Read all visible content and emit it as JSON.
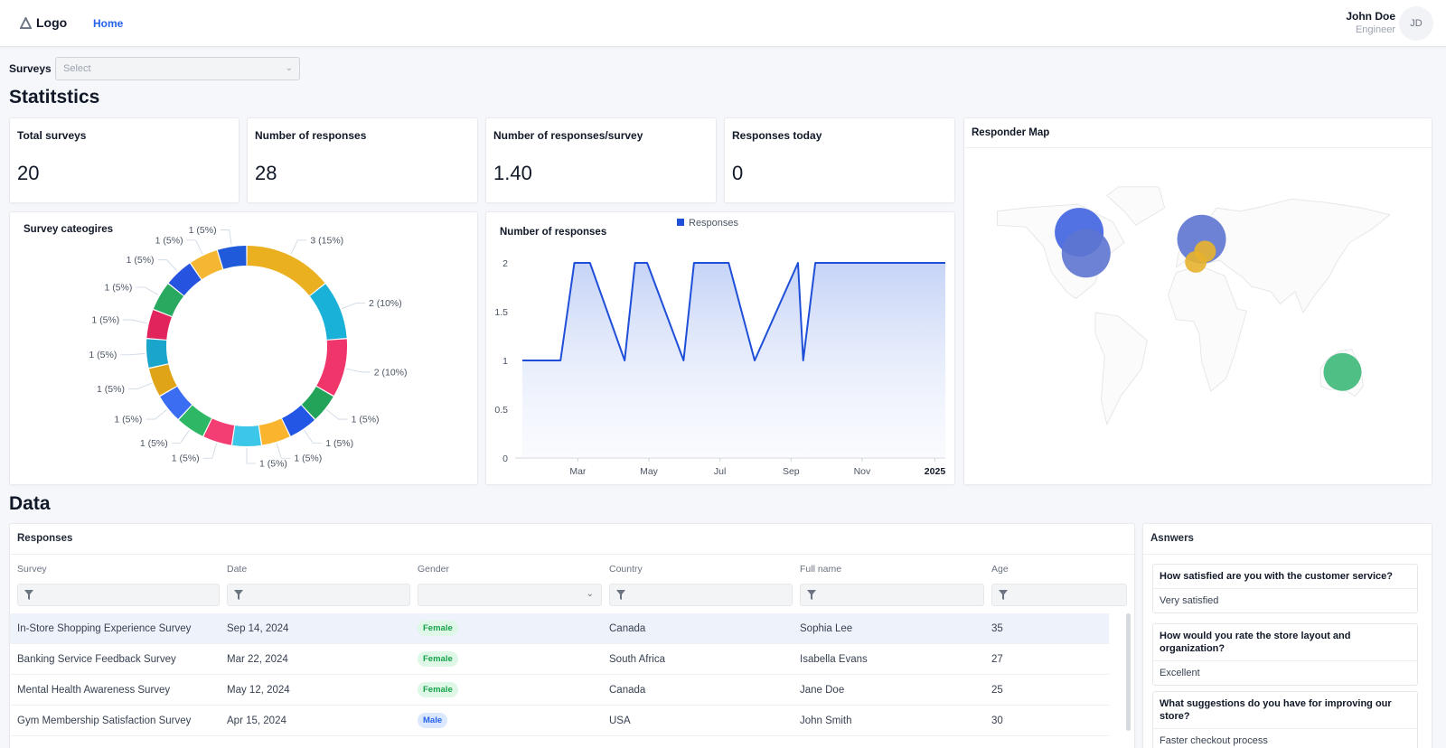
{
  "header": {
    "logo_text": "Logo",
    "nav": [
      {
        "label": "Home"
      }
    ],
    "user": {
      "name": "John Doe",
      "role": "Engineer",
      "initials": "JD"
    }
  },
  "filters": {
    "surveys_label": "Surveys",
    "select_placeholder": "Select"
  },
  "statistics": {
    "heading": "Statitstics",
    "cards": [
      {
        "title": "Total surveys",
        "value": "20"
      },
      {
        "title": "Number of responses",
        "value": "28"
      },
      {
        "title": "Number of responses/survey",
        "value": "1.40"
      },
      {
        "title": "Responses today",
        "value": "0"
      }
    ],
    "categories_title": "Survey cateogires",
    "responses_chart_title": "Number of responses",
    "map_title": "Responder Map"
  },
  "chart_data": [
    {
      "type": "pie",
      "title": "Survey cateogires",
      "values": [
        3,
        2,
        2,
        1,
        1,
        1,
        1,
        1,
        1,
        1,
        1,
        1,
        1,
        1,
        1,
        1,
        1
      ],
      "labels": [
        "3 (15%)",
        "2 (10%)",
        "2 (10%)",
        "1 (5%)",
        "1 (5%)",
        "1 (5%)",
        "1 (5%)",
        "1 (5%)",
        "1 (5%)",
        "1 (5%)",
        "1 (5%)",
        "1 (5%)",
        "1 (5%)",
        "1 (5%)",
        "1 (5%)",
        "1 (5%)",
        "1 (5%)"
      ],
      "colors": [
        "#ebb01f",
        "#1ab1d9",
        "#f0356b",
        "#23a35a",
        "#2456e6",
        "#fbb42e",
        "#3cc6e8",
        "#f23e72",
        "#2eb866",
        "#3b6df2",
        "#e0a418",
        "#1aa6cc",
        "#e2245c",
        "#29a85f",
        "#2653e0",
        "#f5b731",
        "#1e5ad9"
      ]
    },
    {
      "type": "area",
      "title": "Number of responses",
      "series_name": "Responses",
      "yticks": [
        "0",
        "0.5",
        "1",
        "1.5",
        "2"
      ],
      "xticks": [
        "Mar",
        "May",
        "Jul",
        "Sep",
        "Nov",
        "2025"
      ],
      "ylim": [
        0,
        2
      ],
      "xlim": [
        0,
        12.2
      ],
      "x": [
        0,
        1.1,
        1.5,
        1.95,
        2.95,
        3.25,
        3.6,
        4.65,
        4.95,
        5.95,
        6.7,
        7.95,
        8.1,
        8.45,
        8.55,
        12.2
      ],
      "y": [
        1,
        1,
        2,
        2,
        1,
        2,
        2,
        1,
        2,
        2,
        1,
        2,
        1,
        2,
        2,
        2
      ]
    }
  ],
  "map": {
    "bubbles": [
      {
        "lon": -94,
        "lat": 56,
        "r": 27,
        "color": "#3f62e0"
      },
      {
        "lon": -88,
        "lat": 44,
        "r": 27,
        "color": "#5d74cf"
      },
      {
        "lon": 12,
        "lat": 52,
        "r": 27,
        "color": "#5d74cf"
      },
      {
        "lon": 15,
        "lat": 45,
        "r": 12,
        "color": "#e7b22c"
      },
      {
        "lon": 7,
        "lat": 39,
        "r": 12,
        "color": "#e7b22c"
      },
      {
        "lon": 134,
        "lat": -24,
        "r": 21,
        "color": "#3cb878"
      }
    ]
  },
  "data_section": {
    "heading": "Data",
    "responses_title": "Responses",
    "columns": [
      "Survey",
      "Date",
      "Gender",
      "Country",
      "Full name",
      "Age"
    ],
    "rows": [
      {
        "survey": "In-Store Shopping Experience Survey",
        "date": "Sep 14, 2024",
        "gender": "Female",
        "country": "Canada",
        "name": "Sophia Lee",
        "age": "35"
      },
      {
        "survey": "Banking Service Feedback Survey",
        "date": "Mar 22, 2024",
        "gender": "Female",
        "country": "South Africa",
        "name": "Isabella Evans",
        "age": "27"
      },
      {
        "survey": "Mental Health Awareness Survey",
        "date": "May 12, 2024",
        "gender": "Female",
        "country": "Canada",
        "name": "Jane Doe",
        "age": "25"
      },
      {
        "survey": "Gym Membership Satisfaction Survey",
        "date": "Apr 15, 2024",
        "gender": "Male",
        "country": "USA",
        "name": "John Smith",
        "age": "30"
      }
    ]
  },
  "answers": {
    "title": "Asnwers",
    "items": [
      {
        "q": "How satisfied are you with the customer service?",
        "a": "Very satisfied"
      },
      {
        "q": "How would you rate the store layout and organization?",
        "a": "Excellent"
      },
      {
        "q": "What suggestions do you have for improving our store?",
        "a": "Faster checkout process"
      }
    ]
  }
}
